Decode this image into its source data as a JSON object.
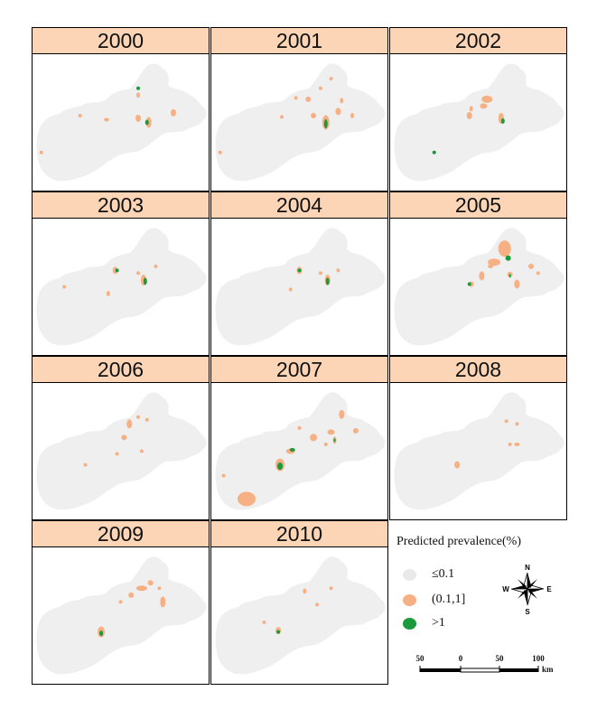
{
  "colors": {
    "panel_header_bg": "#fbd5b5",
    "region_fill": "#efefef",
    "low_prevalence": "#e9e9e9",
    "mid_prevalence": "#f6b084",
    "high_prevalence": "#1a9a3a"
  },
  "panels": [
    {
      "year": "2000",
      "patches": [
        [
          0.6,
          0.3,
          2,
          3,
          "mid"
        ],
        [
          0.6,
          0.47,
          3,
          4,
          "mid"
        ],
        [
          0.66,
          0.5,
          3,
          6,
          "mid"
        ],
        [
          0.65,
          0.5,
          2,
          3,
          "high"
        ],
        [
          0.8,
          0.43,
          3,
          4,
          "mid"
        ],
        [
          0.42,
          0.48,
          3,
          2,
          "mid"
        ],
        [
          0.27,
          0.45,
          2,
          2,
          "mid"
        ],
        [
          0.05,
          0.72,
          2,
          2,
          "mid"
        ],
        [
          0.6,
          0.25,
          2,
          2,
          "high"
        ]
      ]
    },
    {
      "year": "2001",
      "patches": [
        [
          0.65,
          0.5,
          4,
          8,
          "mid"
        ],
        [
          0.65,
          0.51,
          2,
          5,
          "high"
        ],
        [
          0.55,
          0.33,
          3,
          3,
          "mid"
        ],
        [
          0.58,
          0.45,
          3,
          3,
          "mid"
        ],
        [
          0.72,
          0.42,
          3,
          4,
          "mid"
        ],
        [
          0.74,
          0.34,
          2,
          3,
          "mid"
        ],
        [
          0.8,
          0.45,
          2,
          3,
          "mid"
        ],
        [
          0.48,
          0.32,
          2,
          2,
          "mid"
        ],
        [
          0.4,
          0.46,
          2,
          2,
          "mid"
        ],
        [
          0.68,
          0.18,
          2,
          2,
          "mid"
        ],
        [
          0.05,
          0.72,
          2,
          2,
          "mid"
        ],
        [
          0.62,
          0.25,
          2,
          2,
          "mid"
        ]
      ]
    },
    {
      "year": "2002",
      "patches": [
        [
          0.55,
          0.33,
          6,
          4,
          "mid"
        ],
        [
          0.53,
          0.38,
          4,
          3,
          "mid"
        ],
        [
          0.45,
          0.45,
          3,
          4,
          "mid"
        ],
        [
          0.63,
          0.47,
          3,
          6,
          "mid"
        ],
        [
          0.64,
          0.49,
          2,
          3,
          "high"
        ],
        [
          0.46,
          0.4,
          2,
          3,
          "mid"
        ],
        [
          0.25,
          0.72,
          2,
          2,
          "high"
        ]
      ]
    },
    {
      "year": "2003",
      "patches": [
        [
          0.47,
          0.38,
          3,
          4,
          "mid"
        ],
        [
          0.48,
          0.38,
          2,
          2,
          "high"
        ],
        [
          0.63,
          0.45,
          3,
          6,
          "mid"
        ],
        [
          0.64,
          0.46,
          2,
          4,
          "high"
        ],
        [
          0.6,
          0.4,
          2,
          2,
          "mid"
        ],
        [
          0.43,
          0.55,
          2,
          3,
          "mid"
        ],
        [
          0.18,
          0.5,
          2,
          2,
          "mid"
        ],
        [
          0.7,
          0.35,
          2,
          2,
          "mid"
        ]
      ]
    },
    {
      "year": "2004",
      "patches": [
        [
          0.5,
          0.38,
          3,
          4,
          "mid"
        ],
        [
          0.5,
          0.38,
          2,
          2,
          "high"
        ],
        [
          0.66,
          0.45,
          3,
          6,
          "mid"
        ],
        [
          0.66,
          0.46,
          2,
          4,
          "high"
        ],
        [
          0.62,
          0.4,
          2,
          2,
          "mid"
        ],
        [
          0.45,
          0.52,
          2,
          2,
          "mid"
        ],
        [
          0.72,
          0.38,
          2,
          2,
          "mid"
        ]
      ]
    },
    {
      "year": "2005",
      "patches": [
        [
          0.65,
          0.22,
          7,
          9,
          "mid"
        ],
        [
          0.59,
          0.32,
          7,
          4,
          "mid"
        ],
        [
          0.67,
          0.29,
          3,
          3,
          "high"
        ],
        [
          0.52,
          0.42,
          3,
          5,
          "mid"
        ],
        [
          0.46,
          0.48,
          3,
          3,
          "mid"
        ],
        [
          0.45,
          0.48,
          2,
          2,
          "high"
        ],
        [
          0.68,
          0.41,
          3,
          3,
          "mid"
        ],
        [
          0.68,
          0.42,
          1,
          2,
          "high"
        ],
        [
          0.72,
          0.48,
          3,
          5,
          "mid"
        ],
        [
          0.8,
          0.35,
          3,
          3,
          "mid"
        ],
        [
          0.84,
          0.4,
          2,
          2,
          "mid"
        ],
        [
          0.57,
          0.35,
          3,
          2,
          "mid"
        ]
      ]
    },
    {
      "year": "2006",
      "patches": [
        [
          0.55,
          0.3,
          3,
          5,
          "mid"
        ],
        [
          0.6,
          0.25,
          2,
          2,
          "mid"
        ],
        [
          0.65,
          0.27,
          2,
          2,
          "mid"
        ],
        [
          0.52,
          0.4,
          3,
          3,
          "mid"
        ],
        [
          0.48,
          0.52,
          2,
          2,
          "mid"
        ],
        [
          0.62,
          0.5,
          2,
          2,
          "mid"
        ],
        [
          0.3,
          0.6,
          2,
          2,
          "mid"
        ]
      ]
    },
    {
      "year": "2007",
      "patches": [
        [
          0.2,
          0.85,
          10,
          8,
          "mid"
        ],
        [
          0.39,
          0.6,
          5,
          7,
          "mid"
        ],
        [
          0.39,
          0.61,
          3,
          4,
          "high"
        ],
        [
          0.45,
          0.5,
          5,
          3,
          "mid"
        ],
        [
          0.46,
          0.49,
          3,
          2,
          "high"
        ],
        [
          0.58,
          0.4,
          4,
          4,
          "mid"
        ],
        [
          0.68,
          0.36,
          4,
          3,
          "mid"
        ],
        [
          0.7,
          0.42,
          2,
          4,
          "mid"
        ],
        [
          0.7,
          0.42,
          1,
          2,
          "high"
        ],
        [
          0.74,
          0.23,
          3,
          5,
          "mid"
        ],
        [
          0.82,
          0.35,
          3,
          3,
          "mid"
        ],
        [
          0.5,
          0.33,
          2,
          2,
          "mid"
        ],
        [
          0.65,
          0.45,
          2,
          2,
          "mid"
        ],
        [
          0.07,
          0.68,
          2,
          2,
          "mid"
        ]
      ]
    },
    {
      "year": "2008",
      "patches": [
        [
          0.38,
          0.6,
          3,
          4,
          "mid"
        ],
        [
          0.66,
          0.28,
          2,
          2,
          "mid"
        ],
        [
          0.72,
          0.3,
          2,
          2,
          "mid"
        ],
        [
          0.68,
          0.45,
          2,
          2,
          "mid"
        ],
        [
          0.72,
          0.45,
          3,
          2,
          "mid"
        ]
      ]
    },
    {
      "year": "2009",
      "patches": [
        [
          0.39,
          0.62,
          4,
          6,
          "mid"
        ],
        [
          0.39,
          0.63,
          2,
          3,
          "high"
        ],
        [
          0.62,
          0.3,
          6,
          3,
          "mid"
        ],
        [
          0.56,
          0.35,
          3,
          3,
          "mid"
        ],
        [
          0.74,
          0.4,
          3,
          6,
          "mid"
        ],
        [
          0.67,
          0.26,
          3,
          3,
          "mid"
        ],
        [
          0.72,
          0.3,
          2,
          2,
          "mid"
        ],
        [
          0.5,
          0.4,
          2,
          2,
          "mid"
        ]
      ]
    },
    {
      "year": "2010",
      "patches": [
        [
          0.38,
          0.61,
          3,
          4,
          "mid"
        ],
        [
          0.38,
          0.62,
          2,
          2,
          "high"
        ],
        [
          0.53,
          0.32,
          2,
          3,
          "mid"
        ],
        [
          0.68,
          0.3,
          2,
          2,
          "mid"
        ],
        [
          0.6,
          0.42,
          2,
          2,
          "mid"
        ],
        [
          0.3,
          0.55,
          2,
          2,
          "mid"
        ]
      ]
    }
  ],
  "legend": {
    "title": "Predicted prevalence(%)",
    "items": [
      {
        "label": "≤0.1",
        "color": "#e9e9e9"
      },
      {
        "label": "(0.1,1]",
        "color": "#f6b084"
      },
      {
        "label": ">1",
        "color": "#1a9a3a"
      }
    ]
  },
  "compass": {
    "n": "N",
    "s": "S",
    "e": "E",
    "w": "W"
  },
  "scalebar": {
    "labels": [
      "50",
      "0",
      "50",
      "100"
    ],
    "unit": "km"
  }
}
